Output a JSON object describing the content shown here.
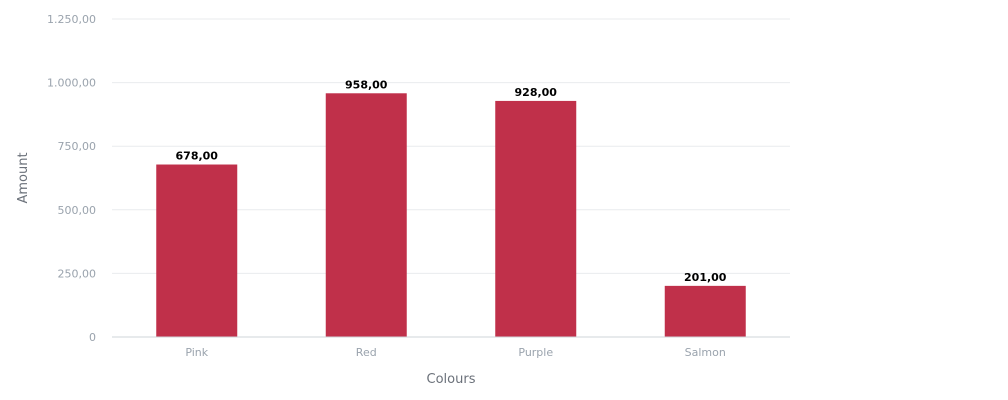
{
  "chart_data": {
    "type": "bar",
    "title": "",
    "xlabel": "Colours",
    "ylabel": "Amount",
    "categories": [
      "Pink",
      "Red",
      "Purple",
      "Salmon"
    ],
    "values": [
      678,
      958,
      928,
      201
    ],
    "value_labels": [
      "678,00",
      "958,00",
      "928,00",
      "201,00"
    ],
    "y_ticks": [
      0,
      250,
      500,
      750,
      1000,
      1250
    ],
    "y_tick_labels": [
      "0",
      "250,00",
      "500,00",
      "750,00",
      "1.000,00",
      "1.250,00"
    ],
    "ylim": [
      0,
      1250
    ],
    "grid": true,
    "legend": "none",
    "colors": {
      "bar": "#c0304a",
      "grid": "#e9ebee",
      "tick_text": "#9aa3ad",
      "axis_title": "#6b717a",
      "value_text": "#000000",
      "baseline": "#cfd4da"
    }
  }
}
